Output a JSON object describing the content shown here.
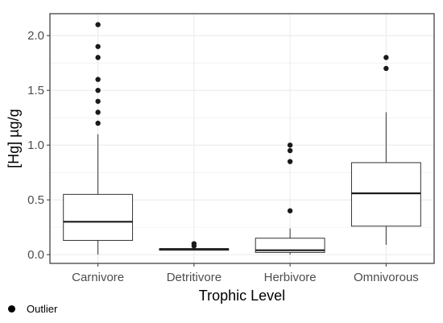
{
  "chart_data": {
    "type": "boxplot",
    "xlabel": "Trophic Level",
    "ylabel": "[Hg] µg/g",
    "ylim": [
      -0.08,
      2.2
    ],
    "yticks": [
      "0.0",
      "0.5",
      "1.0",
      "1.5",
      "2.0"
    ],
    "ytick_values": [
      0,
      0.5,
      1.0,
      1.5,
      2.0
    ],
    "grid": true,
    "categories": [
      "Carnivore",
      "Detritivore",
      "Herbivore",
      "Omnivorous"
    ],
    "boxes": [
      {
        "category": "Carnivore",
        "whisker_low": 0.0,
        "q1": 0.13,
        "median": 0.3,
        "q3": 0.55,
        "whisker_high": 1.1,
        "outliers": [
          1.2,
          1.3,
          1.4,
          1.5,
          1.6,
          1.8,
          1.9,
          2.1
        ]
      },
      {
        "category": "Detritivore",
        "whisker_low": 0.04,
        "q1": 0.04,
        "median": 0.05,
        "q3": 0.055,
        "whisker_high": 0.06,
        "outliers": [
          0.08,
          0.1
        ]
      },
      {
        "category": "Herbivore",
        "whisker_low": 0.0,
        "q1": 0.02,
        "median": 0.04,
        "q3": 0.15,
        "whisker_high": 0.24,
        "outliers": [
          0.4,
          0.85,
          0.95,
          1.0
        ]
      },
      {
        "category": "Omnivorous",
        "whisker_low": 0.09,
        "q1": 0.26,
        "median": 0.56,
        "q3": 0.84,
        "whisker_high": 1.3,
        "outliers": [
          1.7,
          1.8
        ]
      }
    ],
    "legend": {
      "label": "Outlier",
      "placement": "bottom-left"
    },
    "colors": {
      "box_fill": "#ffffff",
      "box_stroke": "#333333",
      "median": "#1a1a1a",
      "outlier": "#1a1a1a",
      "grid": "#ebebeb",
      "panel_border": "#333333"
    }
  }
}
